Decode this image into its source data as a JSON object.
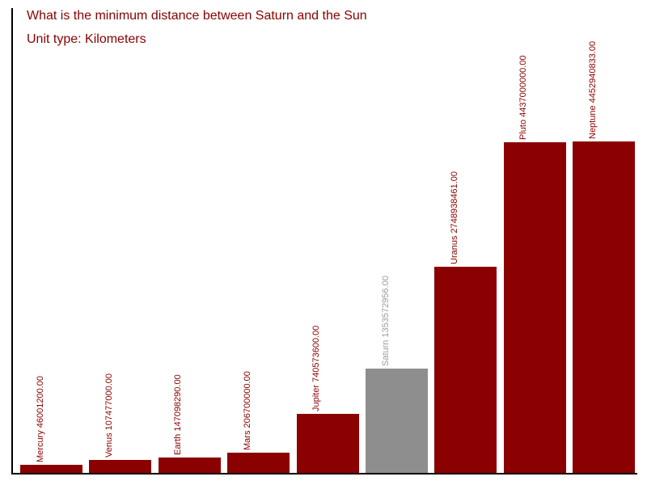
{
  "header": {
    "title": "What is the minimum distance between Saturn and the Sun",
    "subtitle": "Unit type: Kilometers"
  },
  "colors": {
    "bar": "#8b0000",
    "highlight_bar": "#8e8e8e",
    "label": "#8b0000",
    "highlight_label": "#9c9c9c",
    "title": "#8b0000",
    "axis": "#000000",
    "background": "#ffffff"
  },
  "chart_data": {
    "type": "bar",
    "title": "What is the minimum distance between Saturn and the Sun",
    "subtitle": "Unit type: Kilometers",
    "unit": "Kilometers",
    "highlighted_category": "Saturn",
    "categories": [
      "Mercury",
      "Venus",
      "Earth",
      "Mars",
      "Jupiter",
      "Saturn",
      "Uranus",
      "Pluto",
      "Neptune"
    ],
    "values": [
      46001200.0,
      107477000.0,
      147098290.0,
      206700000.0,
      740573600.0,
      1353572956.0,
      2748938461.0,
      4437000000.0,
      4452940833.0
    ],
    "bar_labels": [
      "Mercury 46001200.00",
      "Venus 107477000.00",
      "Earth 147098290.00",
      "Mars 206700000.00",
      "Jupiter 740573600.00",
      "Saturn 1353572956.00",
      "Uranus 2748938461.00",
      "Pluto 4437000000.00",
      "Neptune 4452940833.00"
    ],
    "xlabel": "",
    "ylabel": "",
    "grid": false,
    "legend": false,
    "ticks_visible": false,
    "bar_label_rotation_deg": 90
  }
}
